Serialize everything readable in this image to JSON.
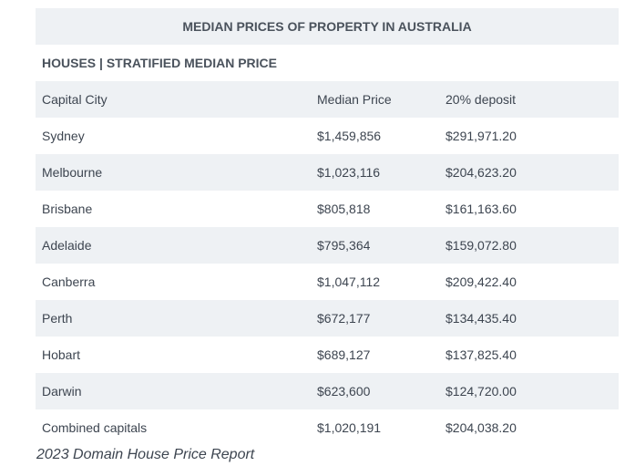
{
  "table": {
    "title": "MEDIAN PRICES OF PROPERTY IN AUSTRALIA",
    "section": "HOUSES | STRATIFIED MEDIAN PRICE",
    "headers": [
      "Capital City",
      "Median Price",
      "20% deposit"
    ],
    "rows": [
      [
        "Sydney",
        "$1,459,856",
        "$291,971.20"
      ],
      [
        "Melbourne",
        "$1,023,116",
        "$204,623.20"
      ],
      [
        "Brisbane",
        "$805,818",
        "$161,163.60"
      ],
      [
        "Adelaide",
        "$795,364",
        "$159,072.80"
      ],
      [
        "Canberra",
        "$1,047,112",
        "$209,422.40"
      ],
      [
        "Perth",
        "$672,177",
        "$134,435.40"
      ],
      [
        "Hobart",
        "$689,127",
        "$137,825.40"
      ],
      [
        "Darwin",
        "$623,600",
        "$124,720.00"
      ],
      [
        "Combined capitals",
        "$1,020,191",
        "$204,038.20"
      ]
    ]
  },
  "caption": "2023 Domain House Price Report"
}
